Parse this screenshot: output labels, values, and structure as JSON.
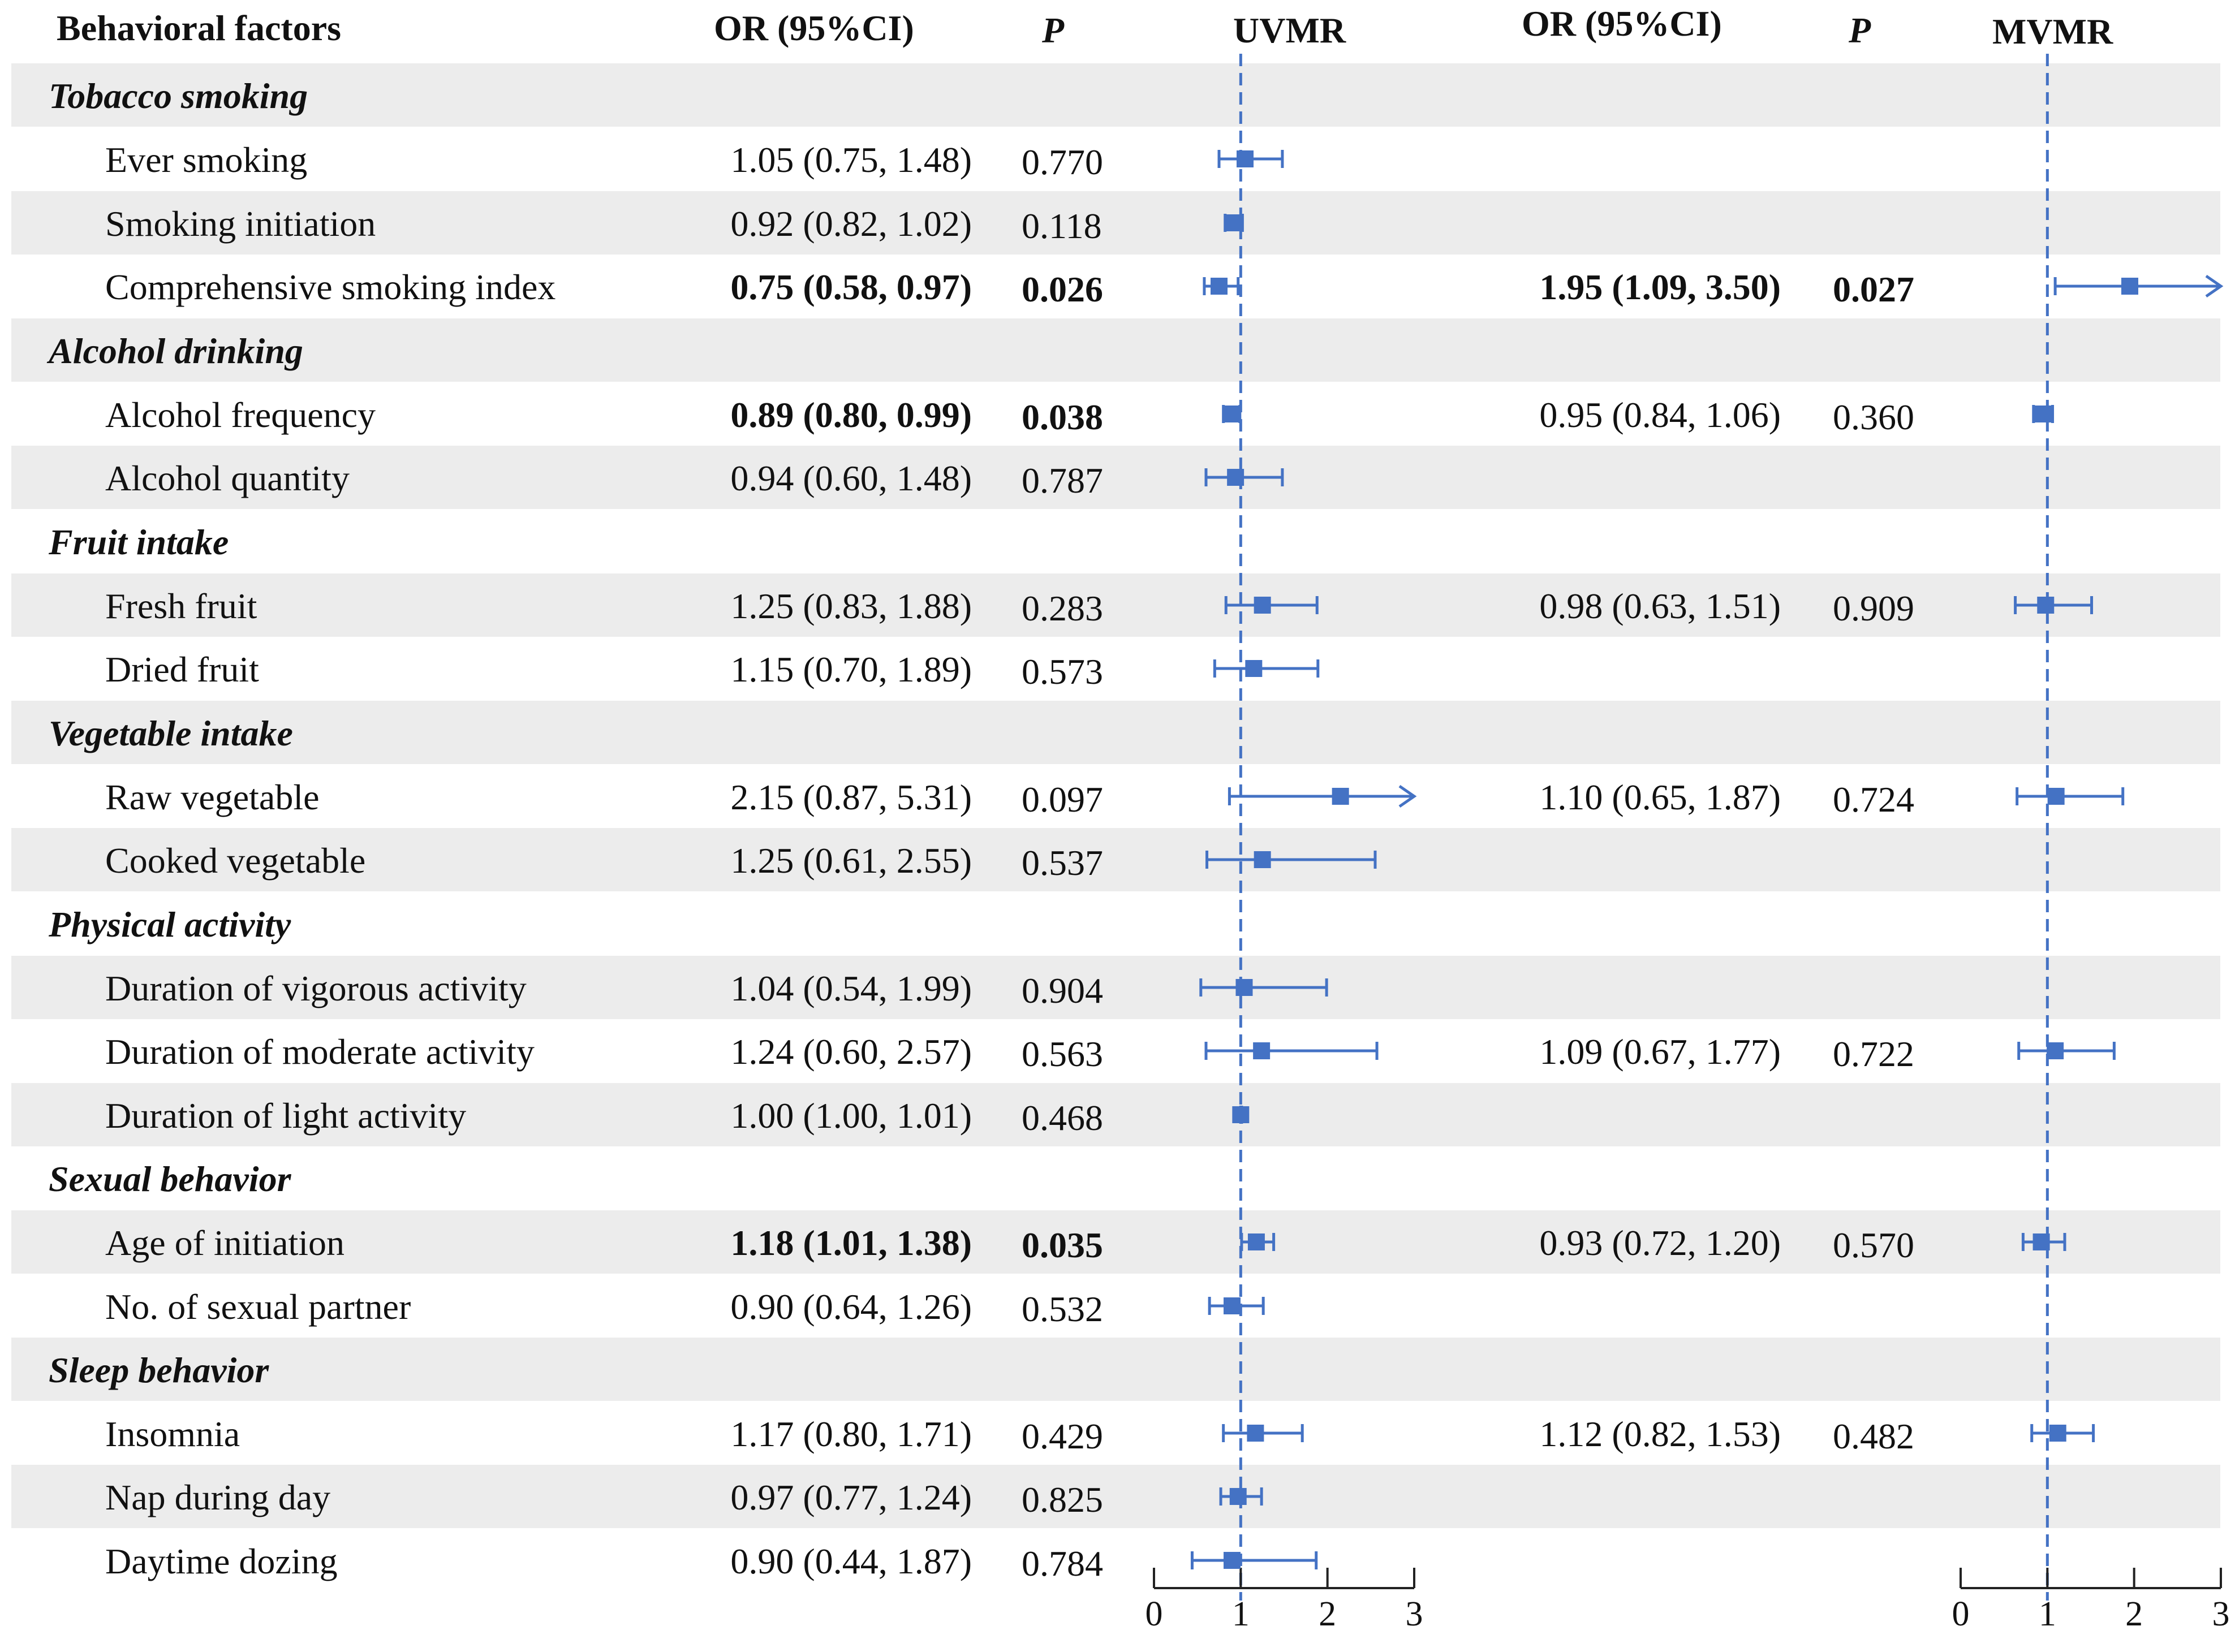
{
  "header": {
    "factor": "Behavioral factors",
    "or_uv": "OR (95%CI)",
    "p_uv": "P",
    "uvmr": "UVMR",
    "or_mv": "OR (95%CI)",
    "p_mv": "P",
    "mvmr": "MVMR"
  },
  "rows": [
    {
      "type": "category",
      "label": "Tobacco smoking"
    },
    {
      "type": "item",
      "label": "Ever smoking",
      "uv_text": "1.05 (0.75, 1.48)",
      "uv_p": "0.770",
      "bold": false
    },
    {
      "type": "item",
      "label": "Smoking initiation",
      "uv_text": "0.92 (0.82, 1.02)",
      "uv_p": "0.118",
      "bold": false
    },
    {
      "type": "item",
      "label": "Comprehensive smoking index",
      "uv_text": "0.75 (0.58, 0.97)",
      "uv_p": "0.026",
      "bold": true,
      "mv_text": "1.95 (1.09, 3.50)",
      "mv_p": "0.027",
      "mv_bold": true
    },
    {
      "type": "category",
      "label": "Alcohol drinking"
    },
    {
      "type": "item",
      "label": "Alcohol frequency",
      "uv_text": "0.89 (0.80, 0.99)",
      "uv_p": "0.038",
      "bold": true,
      "mv_text": "0.95 (0.84, 1.06)",
      "mv_p": "0.360",
      "mv_bold": false
    },
    {
      "type": "item",
      "label": "Alcohol quantity",
      "uv_text": "0.94 (0.60, 1.48)",
      "uv_p": "0.787",
      "bold": false
    },
    {
      "type": "category",
      "label": "Fruit intake"
    },
    {
      "type": "item",
      "label": "Fresh fruit",
      "uv_text": "1.25 (0.83, 1.88)",
      "uv_p": "0.283",
      "bold": false,
      "mv_text": "0.98 (0.63, 1.51)",
      "mv_p": "0.909",
      "mv_bold": false
    },
    {
      "type": "item",
      "label": "Dried fruit",
      "uv_text": "1.15 (0.70, 1.89)",
      "uv_p": "0.573",
      "bold": false
    },
    {
      "type": "category",
      "label": "Vegetable intake"
    },
    {
      "type": "item",
      "label": "Raw vegetable",
      "uv_text": "2.15 (0.87, 5.31)",
      "uv_p": "0.097",
      "bold": false,
      "mv_text": "1.10 (0.65, 1.87)",
      "mv_p": "0.724",
      "mv_bold": false
    },
    {
      "type": "item",
      "label": "Cooked vegetable",
      "uv_text": "1.25 (0.61, 2.55)",
      "uv_p": "0.537",
      "bold": false
    },
    {
      "type": "category",
      "label": "Physical activity"
    },
    {
      "type": "item",
      "label": "Duration of vigorous activity",
      "uv_text": "1.04 (0.54, 1.99)",
      "uv_p": "0.904",
      "bold": false
    },
    {
      "type": "item",
      "label": "Duration of moderate activity",
      "uv_text": "1.24 (0.60, 2.57)",
      "uv_p": "0.563",
      "bold": false,
      "mv_text": "1.09 (0.67, 1.77)",
      "mv_p": "0.722",
      "mv_bold": false
    },
    {
      "type": "item",
      "label": "Duration of light activity",
      "uv_text": "1.00 (1.00, 1.01)",
      "uv_p": "0.468",
      "bold": false
    },
    {
      "type": "category",
      "label": "Sexual behavior"
    },
    {
      "type": "item",
      "label": "Age of initiation",
      "uv_text": "1.18 (1.01, 1.38)",
      "uv_p": "0.035",
      "bold": true,
      "mv_text": "0.93 (0.72, 1.20)",
      "mv_p": "0.570",
      "mv_bold": false
    },
    {
      "type": "item",
      "label": "No. of sexual partner",
      "uv_text": "0.90 (0.64, 1.26)",
      "uv_p": "0.532",
      "bold": false
    },
    {
      "type": "category",
      "label": "Sleep behavior"
    },
    {
      "type": "item",
      "label": "Insomnia",
      "uv_text": "1.17 (0.80, 1.71)",
      "uv_p": "0.429",
      "bold": false,
      "mv_text": "1.12 (0.82, 1.53)",
      "mv_p": "0.482",
      "mv_bold": false
    },
    {
      "type": "item",
      "label": "Nap during day",
      "uv_text": "0.97 (0.77, 1.24)",
      "uv_p": "0.825",
      "bold": false
    },
    {
      "type": "item",
      "label": "Daytime dozing",
      "uv_text": "0.90 (0.44, 1.87)",
      "uv_p": "0.784",
      "bold": false
    }
  ],
  "chart_data": [
    {
      "type": "forest",
      "title": "UVMR",
      "xlim": [
        0,
        3
      ],
      "xticks": [
        "0",
        "1",
        "2",
        "3"
      ],
      "reference_line": 1,
      "color": "#4472c4",
      "points": [
        {
          "label": "Ever smoking",
          "or": 1.05,
          "low": 0.75,
          "high": 1.48
        },
        {
          "label": "Smoking initiation",
          "or": 0.92,
          "low": 0.82,
          "high": 1.02
        },
        {
          "label": "Comprehensive smoking index",
          "or": 0.75,
          "low": 0.58,
          "high": 0.97
        },
        {
          "label": "Alcohol frequency",
          "or": 0.89,
          "low": 0.8,
          "high": 0.99
        },
        {
          "label": "Alcohol quantity",
          "or": 0.94,
          "low": 0.6,
          "high": 1.48
        },
        {
          "label": "Fresh fruit",
          "or": 1.25,
          "low": 0.83,
          "high": 1.88
        },
        {
          "label": "Dried fruit",
          "or": 1.15,
          "low": 0.7,
          "high": 1.89
        },
        {
          "label": "Raw vegetable",
          "or": 2.15,
          "low": 0.87,
          "high": 5.31
        },
        {
          "label": "Cooked vegetable",
          "or": 1.25,
          "low": 0.61,
          "high": 2.55
        },
        {
          "label": "Duration of vigorous activity",
          "or": 1.04,
          "low": 0.54,
          "high": 1.99
        },
        {
          "label": "Duration of moderate activity",
          "or": 1.24,
          "low": 0.6,
          "high": 2.57
        },
        {
          "label": "Duration of light activity",
          "or": 1.0,
          "low": 1.0,
          "high": 1.01
        },
        {
          "label": "Age of initiation",
          "or": 1.18,
          "low": 1.01,
          "high": 1.38
        },
        {
          "label": "No. of sexual partner",
          "or": 0.9,
          "low": 0.64,
          "high": 1.26
        },
        {
          "label": "Insomnia",
          "or": 1.17,
          "low": 0.8,
          "high": 1.71
        },
        {
          "label": "Nap during day",
          "or": 0.97,
          "low": 0.77,
          "high": 1.24
        },
        {
          "label": "Daytime dozing",
          "or": 0.9,
          "low": 0.44,
          "high": 1.87
        }
      ]
    },
    {
      "type": "forest",
      "title": "MVMR",
      "xlim": [
        0,
        3
      ],
      "xticks": [
        "0",
        "1",
        "2",
        "3"
      ],
      "reference_line": 1,
      "color": "#4472c4",
      "points": [
        {
          "label": "Comprehensive smoking index",
          "or": 1.95,
          "low": 1.09,
          "high": 3.5
        },
        {
          "label": "Alcohol frequency",
          "or": 0.95,
          "low": 0.84,
          "high": 1.06
        },
        {
          "label": "Fresh fruit",
          "or": 0.98,
          "low": 0.63,
          "high": 1.51
        },
        {
          "label": "Raw vegetable",
          "or": 1.1,
          "low": 0.65,
          "high": 1.87
        },
        {
          "label": "Duration of moderate activity",
          "or": 1.09,
          "low": 0.67,
          "high": 1.77
        },
        {
          "label": "Age of initiation",
          "or": 0.93,
          "low": 0.72,
          "high": 1.2
        },
        {
          "label": "Insomnia",
          "or": 1.12,
          "low": 0.82,
          "high": 1.53
        }
      ]
    }
  ]
}
